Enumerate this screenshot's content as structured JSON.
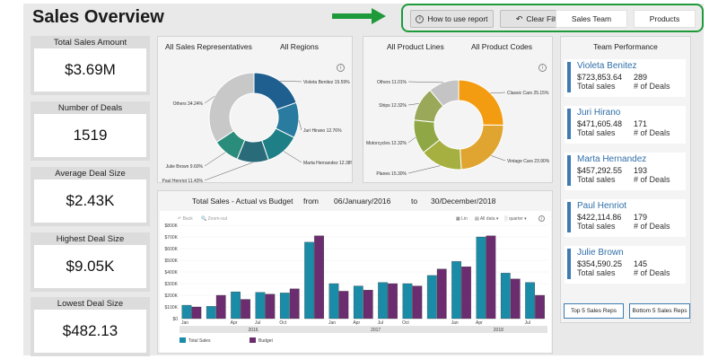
{
  "title": "Sales Overview",
  "filters": {
    "how_to": "How to use report",
    "clear": "Clear Filters",
    "sales_team": "Sales Team",
    "products": "Products"
  },
  "kpis": [
    {
      "label": "Total Sales Amount",
      "value": "$3.69M"
    },
    {
      "label": "Number of Deals",
      "value": "1519"
    },
    {
      "label": "Average Deal Size",
      "value": "$2.43K"
    },
    {
      "label": "Highest Deal Size",
      "value": "$9.05K"
    },
    {
      "label": "Lowest Deal Size",
      "value": "$482.13"
    }
  ],
  "reps_panel": {
    "filter1": "All Sales Representatives",
    "filter2": "All Regions"
  },
  "products_panel": {
    "filter1": "All Product Lines",
    "filter2": "All Product Codes"
  },
  "sales_panel": {
    "title": "Total Sales - Actual vs Budget",
    "from_label": "from",
    "from_date": "06/January/2016",
    "to_label": "to",
    "to_date": "30/December/2018",
    "back": "Back",
    "zoom_out": "Zoom-out",
    "lin": "Lin",
    "all_data": "All data",
    "quarter": "quarter"
  },
  "team": {
    "title": "Team Performance",
    "sales_label": "Total sales",
    "deals_label": "# of Deals",
    "reps": [
      {
        "name": "Violeta Benitez",
        "sales": "$723,853.64",
        "deals": "289"
      },
      {
        "name": "Juri Hirano",
        "sales": "$471,605.48",
        "deals": "171"
      },
      {
        "name": "Marta Hernandez",
        "sales": "$457,292.55",
        "deals": "193"
      },
      {
        "name": "Paul Henriot",
        "sales": "$422,114.86",
        "deals": "179"
      },
      {
        "name": "Julie Brown",
        "sales": "$354,590.25",
        "deals": "145"
      }
    ],
    "top_btn": "Top 5 Sales Reps",
    "bottom_btn": "Bottom 5 Sales Reps"
  },
  "colors": {
    "actual": "#1a8ca8",
    "budget": "#6b2d6f",
    "accent": "#1e9a3a"
  },
  "chart_data": [
    {
      "type": "pie",
      "donut": true,
      "labels": [
        "Violeta Benitez",
        "Juri Hirano",
        "Marta Hernandez",
        "Paul Henriot",
        "Julie Brown",
        "Others"
      ],
      "label_text": [
        "Violeta Benitez 19.59%",
        "Juri Hirano 12.76%",
        "Marta Hernandez 12.38%",
        "Paul Henriot 11.43%",
        "Julie Brown 9.60%",
        "Others 34.24%"
      ],
      "values": [
        19.59,
        12.76,
        12.38,
        11.43,
        9.6,
        34.24
      ],
      "colors": [
        "#1e5f8f",
        "#2a7ba0",
        "#1f7f86",
        "#2a6b7a",
        "#2a8c7a",
        "#c8c8c8"
      ]
    },
    {
      "type": "pie",
      "donut": true,
      "labels": [
        "Classic Cars",
        "Vintage Cars",
        "Planes",
        "Motorcycles",
        "Ships",
        "Others"
      ],
      "label_text": [
        "Classic Cars 25.15%",
        "Vintage Cars 23.90%",
        "Planes 15.30%",
        "Motorcycles 12.32%",
        "Ships 12.32%",
        "Others 11.01%"
      ],
      "values": [
        25.15,
        23.9,
        15.3,
        12.32,
        12.32,
        11.01
      ],
      "colors": [
        "#f39c12",
        "#e0a530",
        "#a6b040",
        "#8fa845",
        "#9aa85a",
        "#c4c4c4"
      ]
    },
    {
      "type": "bar",
      "ylim": [
        0,
        800000
      ],
      "yticks": [
        "$0",
        "$100K",
        "$200K",
        "$300K",
        "$400K",
        "$500K",
        "$600K",
        "$700K",
        "$800K"
      ],
      "categories": [
        "Jan",
        "",
        "Apr",
        "Jul",
        "Oct",
        "",
        "Jan",
        "Apr",
        "Jul",
        "Oct",
        "",
        "Jan",
        "Apr",
        "",
        "Jul"
      ],
      "year_labels": [
        "2016",
        "2017",
        "2018"
      ],
      "series": [
        {
          "name": "Total Sales",
          "values": [
            115000,
            105000,
            230000,
            225000,
            220000,
            655000,
            300000,
            280000,
            310000,
            300000,
            370000,
            490000,
            700000,
            390000,
            310000
          ]
        },
        {
          "name": "Budget",
          "values": [
            100000,
            200000,
            165000,
            210000,
            255000,
            710000,
            235000,
            245000,
            300000,
            280000,
            425000,
            445000,
            710000,
            340000,
            200000
          ]
        }
      ]
    }
  ]
}
